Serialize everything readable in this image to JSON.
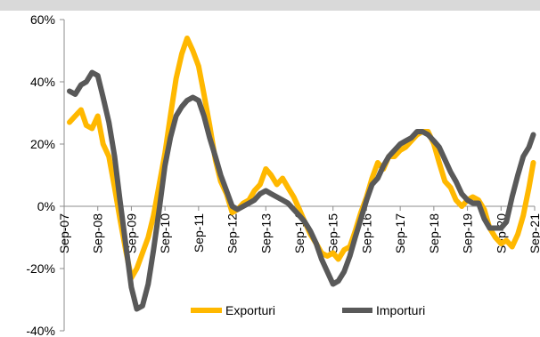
{
  "chart_data": {
    "type": "line",
    "title": "",
    "xlabel": "",
    "ylabel": "",
    "ylim": [
      -0.4,
      0.6
    ],
    "yticks": [
      {
        "value": 0.6,
        "label": "60%"
      },
      {
        "value": 0.4,
        "label": "40%"
      },
      {
        "value": 0.2,
        "label": "20%"
      },
      {
        "value": 0.0,
        "label": "0%"
      },
      {
        "value": -0.2,
        "label": "-20%"
      },
      {
        "value": -0.4,
        "label": "-40%"
      }
    ],
    "xlim": [
      2007.67,
      2021.67
    ],
    "xticks": [
      {
        "value": 2007.67,
        "label": "Sep-07"
      },
      {
        "value": 2008.67,
        "label": "Sep-08"
      },
      {
        "value": 2009.67,
        "label": "Sep-09"
      },
      {
        "value": 2010.67,
        "label": "Sep-10"
      },
      {
        "value": 2011.67,
        "label": "Sep-11"
      },
      {
        "value": 2012.67,
        "label": "Sep-12"
      },
      {
        "value": 2013.67,
        "label": "Sep-13"
      },
      {
        "value": 2014.67,
        "label": "Sep-14"
      },
      {
        "value": 2015.67,
        "label": "Sep-15"
      },
      {
        "value": 2016.67,
        "label": "Sep-16"
      },
      {
        "value": 2017.67,
        "label": "Sep-17"
      },
      {
        "value": 2018.67,
        "label": "Sep-18"
      },
      {
        "value": 2019.67,
        "label": "Sep-19"
      },
      {
        "value": 2020.67,
        "label": "Sep-20"
      },
      {
        "value": 2021.67,
        "label": "Sep-21"
      }
    ],
    "grid": false,
    "legend_position": "bottom",
    "series": [
      {
        "name": "Exporturi",
        "color": "#ffb800",
        "points": [
          [
            2007.83,
            0.27
          ],
          [
            2008.0,
            0.29
          ],
          [
            2008.17,
            0.31
          ],
          [
            2008.33,
            0.26
          ],
          [
            2008.5,
            0.25
          ],
          [
            2008.67,
            0.29
          ],
          [
            2008.83,
            0.2
          ],
          [
            2009.0,
            0.16
          ],
          [
            2009.17,
            0.06
          ],
          [
            2009.33,
            -0.04
          ],
          [
            2009.5,
            -0.14
          ],
          [
            2009.67,
            -0.23
          ],
          [
            2009.83,
            -0.2
          ],
          [
            2010.0,
            -0.15
          ],
          [
            2010.17,
            -0.1
          ],
          [
            2010.33,
            -0.03
          ],
          [
            2010.5,
            0.07
          ],
          [
            2010.67,
            0.17
          ],
          [
            2010.83,
            0.29
          ],
          [
            2011.0,
            0.41
          ],
          [
            2011.17,
            0.49
          ],
          [
            2011.33,
            0.54
          ],
          [
            2011.5,
            0.5
          ],
          [
            2011.67,
            0.45
          ],
          [
            2011.83,
            0.36
          ],
          [
            2012.0,
            0.26
          ],
          [
            2012.17,
            0.15
          ],
          [
            2012.33,
            0.08
          ],
          [
            2012.5,
            0.04
          ],
          [
            2012.67,
            -0.02
          ],
          [
            2012.83,
            -0.01
          ],
          [
            2013.0,
            0.01
          ],
          [
            2013.17,
            0.02
          ],
          [
            2013.33,
            0.05
          ],
          [
            2013.5,
            0.07
          ],
          [
            2013.67,
            0.12
          ],
          [
            2013.83,
            0.1
          ],
          [
            2014.0,
            0.07
          ],
          [
            2014.17,
            0.09
          ],
          [
            2014.33,
            0.06
          ],
          [
            2014.5,
            0.03
          ],
          [
            2014.67,
            -0.01
          ],
          [
            2014.83,
            -0.05
          ],
          [
            2015.0,
            -0.09
          ],
          [
            2015.17,
            -0.12
          ],
          [
            2015.33,
            -0.15
          ],
          [
            2015.5,
            -0.16
          ],
          [
            2015.67,
            -0.15
          ],
          [
            2015.83,
            -0.17
          ],
          [
            2016.0,
            -0.14
          ],
          [
            2016.17,
            -0.13
          ],
          [
            2016.33,
            -0.08
          ],
          [
            2016.5,
            -0.02
          ],
          [
            2016.67,
            0.03
          ],
          [
            2016.83,
            0.09
          ],
          [
            2017.0,
            0.14
          ],
          [
            2017.17,
            0.12
          ],
          [
            2017.33,
            0.16
          ],
          [
            2017.5,
            0.16
          ],
          [
            2017.67,
            0.18
          ],
          [
            2017.83,
            0.19
          ],
          [
            2018.0,
            0.21
          ],
          [
            2018.17,
            0.23
          ],
          [
            2018.33,
            0.24
          ],
          [
            2018.5,
            0.24
          ],
          [
            2018.67,
            0.2
          ],
          [
            2018.83,
            0.14
          ],
          [
            2019.0,
            0.08
          ],
          [
            2019.17,
            0.06
          ],
          [
            2019.33,
            0.02
          ],
          [
            2019.5,
            0.0
          ],
          [
            2019.67,
            0.02
          ],
          [
            2019.83,
            0.03
          ],
          [
            2020.0,
            0.02
          ],
          [
            2020.17,
            -0.01
          ],
          [
            2020.33,
            -0.07
          ],
          [
            2020.5,
            -0.1
          ],
          [
            2020.67,
            -0.12
          ],
          [
            2020.83,
            -0.11
          ],
          [
            2021.0,
            -0.13
          ],
          [
            2021.17,
            -0.09
          ],
          [
            2021.33,
            -0.03
          ],
          [
            2021.5,
            0.06
          ],
          [
            2021.63,
            0.14
          ]
        ]
      },
      {
        "name": "Importuri",
        "color": "#595959",
        "points": [
          [
            2007.83,
            0.37
          ],
          [
            2008.0,
            0.36
          ],
          [
            2008.17,
            0.39
          ],
          [
            2008.33,
            0.4
          ],
          [
            2008.5,
            0.43
          ],
          [
            2008.67,
            0.42
          ],
          [
            2008.83,
            0.35
          ],
          [
            2009.0,
            0.27
          ],
          [
            2009.17,
            0.16
          ],
          [
            2009.33,
            0.02
          ],
          [
            2009.5,
            -0.12
          ],
          [
            2009.67,
            -0.26
          ],
          [
            2009.83,
            -0.33
          ],
          [
            2010.0,
            -0.32
          ],
          [
            2010.17,
            -0.25
          ],
          [
            2010.33,
            -0.14
          ],
          [
            2010.5,
            -0.01
          ],
          [
            2010.67,
            0.13
          ],
          [
            2010.83,
            0.22
          ],
          [
            2011.0,
            0.29
          ],
          [
            2011.17,
            0.32
          ],
          [
            2011.33,
            0.34
          ],
          [
            2011.5,
            0.35
          ],
          [
            2011.67,
            0.34
          ],
          [
            2011.83,
            0.29
          ],
          [
            2012.0,
            0.22
          ],
          [
            2012.17,
            0.16
          ],
          [
            2012.33,
            0.1
          ],
          [
            2012.5,
            0.05
          ],
          [
            2012.67,
            0.0
          ],
          [
            2012.83,
            -0.01
          ],
          [
            2013.0,
            0.0
          ],
          [
            2013.17,
            0.01
          ],
          [
            2013.33,
            0.02
          ],
          [
            2013.5,
            0.04
          ],
          [
            2013.67,
            0.05
          ],
          [
            2013.83,
            0.04
          ],
          [
            2014.0,
            0.03
          ],
          [
            2014.17,
            0.02
          ],
          [
            2014.33,
            0.01
          ],
          [
            2014.5,
            -0.01
          ],
          [
            2014.67,
            -0.03
          ],
          [
            2014.83,
            -0.05
          ],
          [
            2015.0,
            -0.08
          ],
          [
            2015.17,
            -0.12
          ],
          [
            2015.33,
            -0.17
          ],
          [
            2015.5,
            -0.21
          ],
          [
            2015.67,
            -0.25
          ],
          [
            2015.83,
            -0.24
          ],
          [
            2016.0,
            -0.21
          ],
          [
            2016.17,
            -0.16
          ],
          [
            2016.33,
            -0.1
          ],
          [
            2016.5,
            -0.04
          ],
          [
            2016.67,
            0.02
          ],
          [
            2016.83,
            0.07
          ],
          [
            2017.0,
            0.09
          ],
          [
            2017.17,
            0.13
          ],
          [
            2017.33,
            0.16
          ],
          [
            2017.5,
            0.18
          ],
          [
            2017.67,
            0.2
          ],
          [
            2017.83,
            0.21
          ],
          [
            2018.0,
            0.22
          ],
          [
            2018.17,
            0.24
          ],
          [
            2018.33,
            0.24
          ],
          [
            2018.5,
            0.23
          ],
          [
            2018.67,
            0.21
          ],
          [
            2018.83,
            0.19
          ],
          [
            2019.0,
            0.15
          ],
          [
            2019.17,
            0.11
          ],
          [
            2019.33,
            0.08
          ],
          [
            2019.5,
            0.04
          ],
          [
            2019.67,
            0.02
          ],
          [
            2019.83,
            0.01
          ],
          [
            2020.0,
            0.01
          ],
          [
            2020.17,
            -0.04
          ],
          [
            2020.33,
            -0.07
          ],
          [
            2020.5,
            -0.07
          ],
          [
            2020.67,
            -0.07
          ],
          [
            2020.83,
            -0.05
          ],
          [
            2021.0,
            0.03
          ],
          [
            2021.17,
            0.1
          ],
          [
            2021.33,
            0.16
          ],
          [
            2021.5,
            0.19
          ],
          [
            2021.63,
            0.23
          ]
        ]
      }
    ]
  }
}
